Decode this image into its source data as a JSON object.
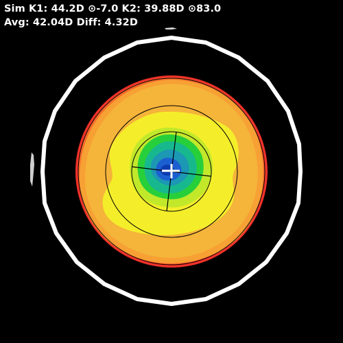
{
  "readout": {
    "sim_k1_label": "Sim K1:",
    "sim_k1_value": "44.2D",
    "k1_axis_symbol": "⊙",
    "k1_axis_value": "-7.0",
    "k2_label": "K2:",
    "k2_value": "39.88D",
    "k2_axis_symbol": "⊙",
    "k2_axis_value": "83.0",
    "avg_label": "Avg:",
    "avg_value": "42.04D",
    "diff_label": "Diff:",
    "diff_value": "4.32D"
  },
  "colors": {
    "background": "#000000",
    "text": "#ffffff",
    "outer_ring": "#ffffff",
    "zone_outer_red": "#f0322a",
    "zone_orange_red": "#f76b2a",
    "zone_orange": "#f7a034",
    "zone_light_orange": "#f5c33a",
    "zone_yellow": "#f4ee2a",
    "zone_yellow_green": "#c2e82a",
    "zone_green": "#27cf3b",
    "zone_teal": "#18b88e",
    "zone_blue_green": "#1c97b4",
    "zone_blue": "#1c5fd0",
    "zone_center": "#0b3db0",
    "grid_lines": "#000000",
    "reticle": "#ffffff"
  }
}
